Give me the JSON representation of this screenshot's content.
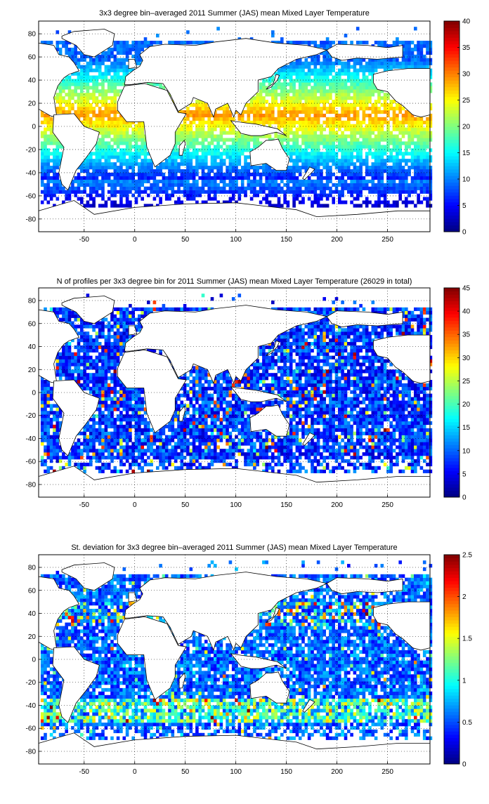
{
  "figure": {
    "background": "#ffffff"
  },
  "chart_data": [
    {
      "type": "heatmap",
      "title": "3x3 degree bin–averaged 2011 Summer (JAS) mean Mixed Layer Temperature",
      "xlabel": "",
      "ylabel": "",
      "xlim": [
        -95,
        292
      ],
      "ylim": [
        -91,
        91
      ],
      "x_ticks": [
        -50,
        0,
        50,
        100,
        150,
        200,
        250
      ],
      "y_ticks": [
        80,
        60,
        40,
        20,
        0,
        -20,
        -40,
        -60,
        -80
      ],
      "grid": true,
      "colorbar": {
        "min": 0,
        "max": 40,
        "ticks": [
          0,
          5,
          10,
          15,
          20,
          25,
          30,
          35,
          40
        ],
        "colormap": "jet"
      },
      "bin_size_deg": 3,
      "field_description": "Warm (25-32) in tropics, decreasing poleward to ~0-3 near Antarctica; Southern Ocean band 5-12"
    },
    {
      "type": "heatmap",
      "title": "N of profiles per 3x3 degree bin for 2011 Summer (JAS) mean Mixed Layer Temperature  (26029 in total)",
      "xlabel": "",
      "ylabel": "",
      "xlim": [
        -95,
        292
      ],
      "ylim": [
        -91,
        91
      ],
      "x_ticks": [
        -50,
        0,
        50,
        100,
        150,
        200,
        250
      ],
      "y_ticks": [
        80,
        60,
        40,
        20,
        0,
        -20,
        -40,
        -60,
        -80
      ],
      "grid": true,
      "colorbar": {
        "min": 0,
        "max": 45,
        "ticks": [
          0,
          5,
          10,
          15,
          20,
          25,
          30,
          35,
          40,
          45
        ],
        "colormap": "jet"
      },
      "bin_size_deg": 3,
      "total_profiles": 26029
    },
    {
      "type": "heatmap",
      "title": "St. deviation for 3x3 degree bin–averaged 2011 Summer (JAS) mean Mixed Layer Temperature",
      "xlabel": "",
      "ylabel": "",
      "xlim": [
        -95,
        292
      ],
      "ylim": [
        -91,
        91
      ],
      "x_ticks": [
        -50,
        0,
        50,
        100,
        150,
        200,
        250
      ],
      "y_ticks": [
        80,
        60,
        40,
        20,
        0,
        -20,
        -40,
        -60,
        -80
      ],
      "grid": true,
      "colorbar": {
        "min": 0,
        "max": 2.5,
        "ticks": [
          0,
          0.5,
          1,
          1.5,
          2,
          2.5
        ],
        "colormap": "jet"
      },
      "bin_size_deg": 3
    }
  ]
}
